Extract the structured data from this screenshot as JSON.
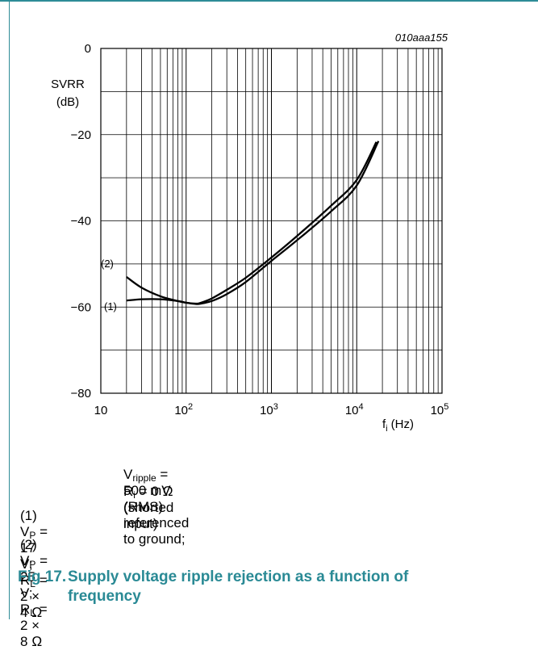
{
  "chart_data": {
    "type": "line",
    "code": "010aaa155",
    "ylabel_line1": "SVRR",
    "ylabel_line2": "(dB)",
    "xlabel_main": "f",
    "xlabel_sub": "i",
    "xlabel_unit": "(Hz)",
    "x_scale": "log",
    "xlim": [
      10,
      100000
    ],
    "ylim": [
      -80,
      0
    ],
    "grid": true,
    "y_ticks": [
      {
        "value": 0,
        "label": "0"
      },
      {
        "value": -20,
        "label": "−20"
      },
      {
        "value": -40,
        "label": "−40"
      },
      {
        "value": -60,
        "label": "−60"
      },
      {
        "value": -80,
        "label": "−80"
      }
    ],
    "x_ticks": [
      {
        "value": 10,
        "base": "10",
        "exp": ""
      },
      {
        "value": 100,
        "base": "10",
        "exp": "2"
      },
      {
        "value": 1000,
        "base": "10",
        "exp": "3"
      },
      {
        "value": 10000,
        "base": "10",
        "exp": "4"
      },
      {
        "value": 100000,
        "base": "10",
        "exp": "5"
      }
    ],
    "series": [
      {
        "name": "(1)",
        "x": [
          20,
          30,
          50,
          80,
          100,
          130,
          150,
          200,
          300,
          500,
          1000,
          2000,
          5000,
          10000,
          18000
        ],
        "y": [
          -58.5,
          -58.2,
          -58.2,
          -58.6,
          -59.0,
          -59.3,
          -59.2,
          -58.6,
          -57.0,
          -54.2,
          -49.3,
          -44.5,
          -37.8,
          -31.8,
          -21.5
        ]
      },
      {
        "name": "(2)",
        "x": [
          20,
          30,
          50,
          80,
          100,
          130,
          150,
          200,
          300,
          500,
          1000,
          2000,
          5000,
          10000,
          17000
        ],
        "y": [
          -53.0,
          -55.5,
          -57.5,
          -58.6,
          -59.0,
          -59.2,
          -59.0,
          -58.0,
          -56.0,
          -53.2,
          -48.5,
          -43.5,
          -36.5,
          -30.5,
          -21.7
        ]
      }
    ]
  },
  "notes": {
    "condition1": {
      "v": "V",
      "v_sub": "ripple",
      "text": " = 500 mV (RMS) referenced to ground;"
    },
    "condition2": {
      "r": "R",
      "r_sub": "i",
      "text": " = 0 Ω (shorted input)"
    },
    "items": [
      {
        "num": "(1)",
        "v": "V",
        "v_sub": "P",
        "mid": " = 17 V; R",
        "r_sub": "L",
        "end": " = 2 × 4 Ω"
      },
      {
        "num": "(2)",
        "v": "V",
        "v_sub": "P",
        "mid": " = 25 V; R",
        "r_sub": "L",
        "end": " = 2 × 8 Ω"
      }
    ]
  },
  "figure": {
    "number": "Fig 17.",
    "caption_line1": "Supply voltage ripple rejection as a function of",
    "caption_line2": "frequency"
  },
  "colors": {
    "accent": "#2a8a95",
    "frame": "#2e8c97",
    "curve": "#000000",
    "grid": "#000000"
  }
}
